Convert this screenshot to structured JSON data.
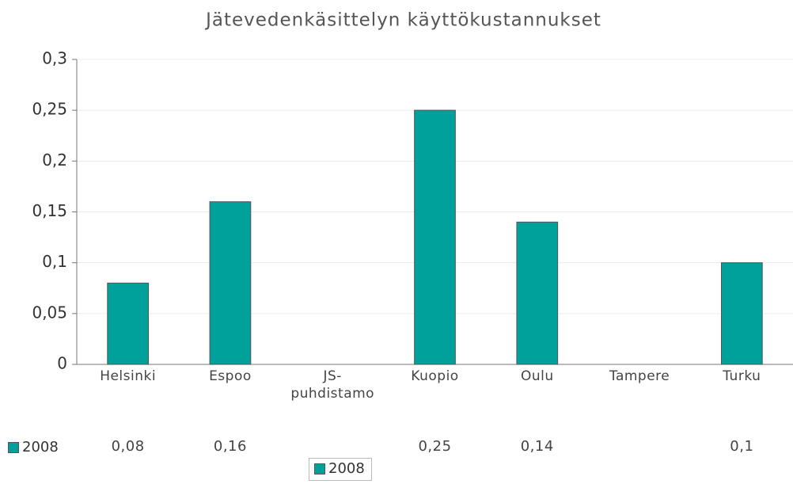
{
  "chart_data": {
    "type": "bar",
    "title": "Jätevedenkäsittelyn käyttökustannukset",
    "categories": [
      "Helsinki",
      "Espoo",
      "JS-puhdistamo",
      "Kuopio",
      "Oulu",
      "Tampere",
      "Turku"
    ],
    "series": [
      {
        "name": "2008",
        "color": "#00a19a",
        "values": [
          0.08,
          0.16,
          null,
          0.25,
          0.14,
          null,
          0.1
        ],
        "value_labels": [
          "0,08",
          "0,16",
          null,
          "0,25",
          "0,14",
          null,
          "0,1"
        ]
      }
    ],
    "ylim": [
      0,
      0.3
    ],
    "yticks": [
      0,
      {
        "value": 0.05,
        "label": "0,05"
      },
      {
        "value": 0.1,
        "label": "0,1"
      },
      {
        "value": 0.15,
        "label": "0,15"
      },
      {
        "value": 0.2,
        "label": "0,2"
      },
      {
        "value": 0.25,
        "label": "0,25"
      },
      {
        "value": 0.3,
        "label": "0,3"
      }
    ],
    "grid": true,
    "legend": "bottom"
  }
}
